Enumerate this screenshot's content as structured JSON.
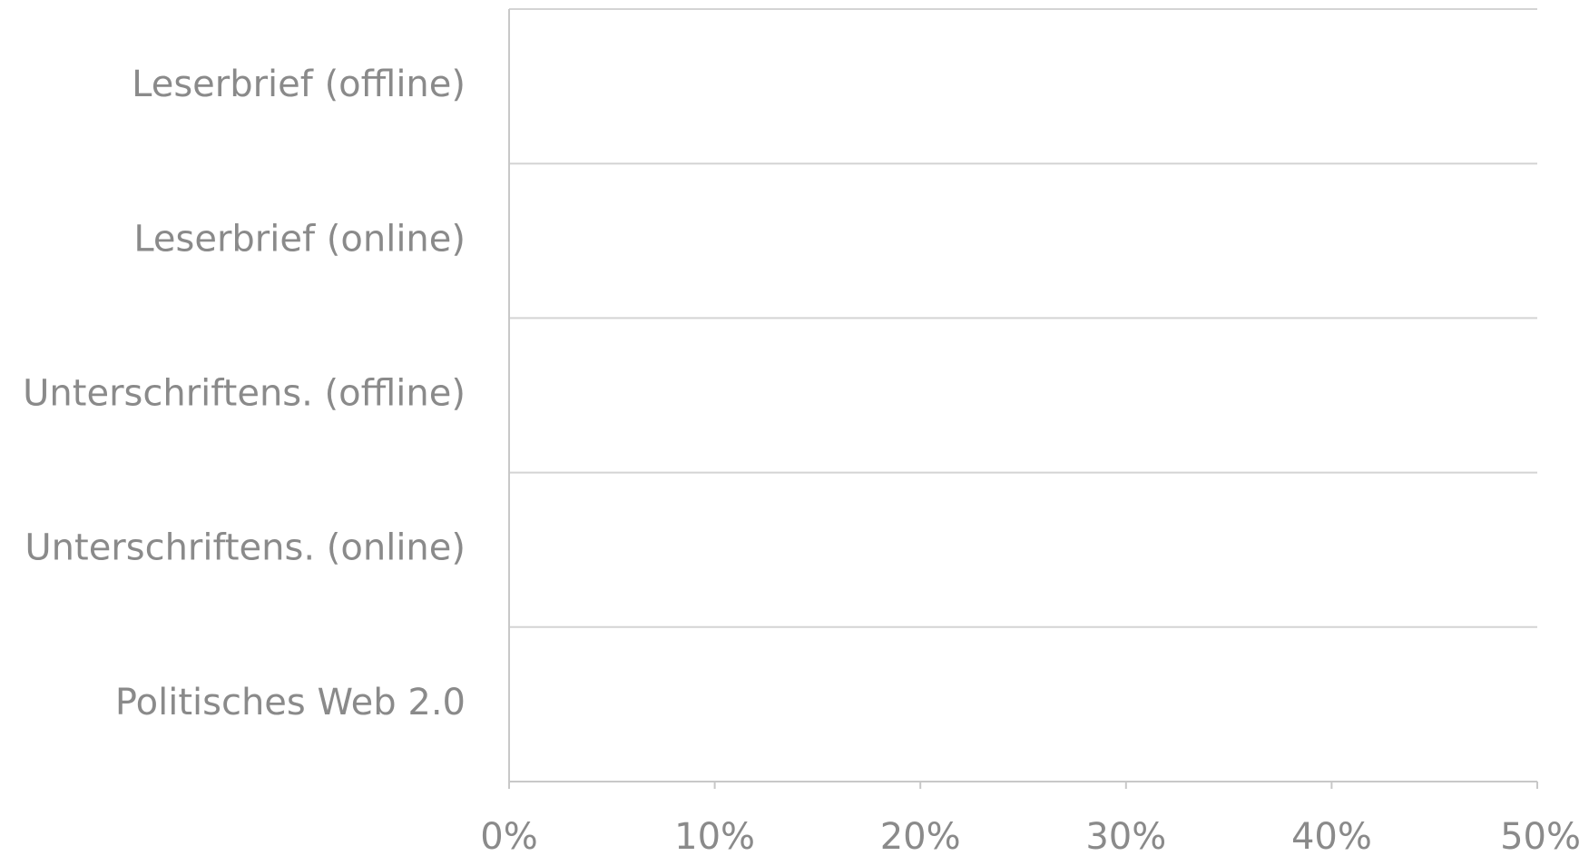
{
  "chart_data": {
    "type": "bar",
    "orientation": "horizontal",
    "categories": [
      "Leserbrief (offline)",
      "Leserbrief (online)",
      "Unterschriftens. (offline)",
      "Unterschriftens. (online)",
      "Politisches Web 2.0"
    ],
    "series": [],
    "xlim": [
      0,
      50
    ],
    "x_ticks": [
      "0%",
      "10%",
      "20%",
      "30%",
      "40%",
      "50%"
    ],
    "title": "",
    "xlabel": "",
    "ylabel": "",
    "grid": "horizontal lines between categories",
    "colors": {
      "text": "#8a8a8a",
      "axis": "#c8c8c8",
      "grid": "#d4d4d4"
    }
  }
}
